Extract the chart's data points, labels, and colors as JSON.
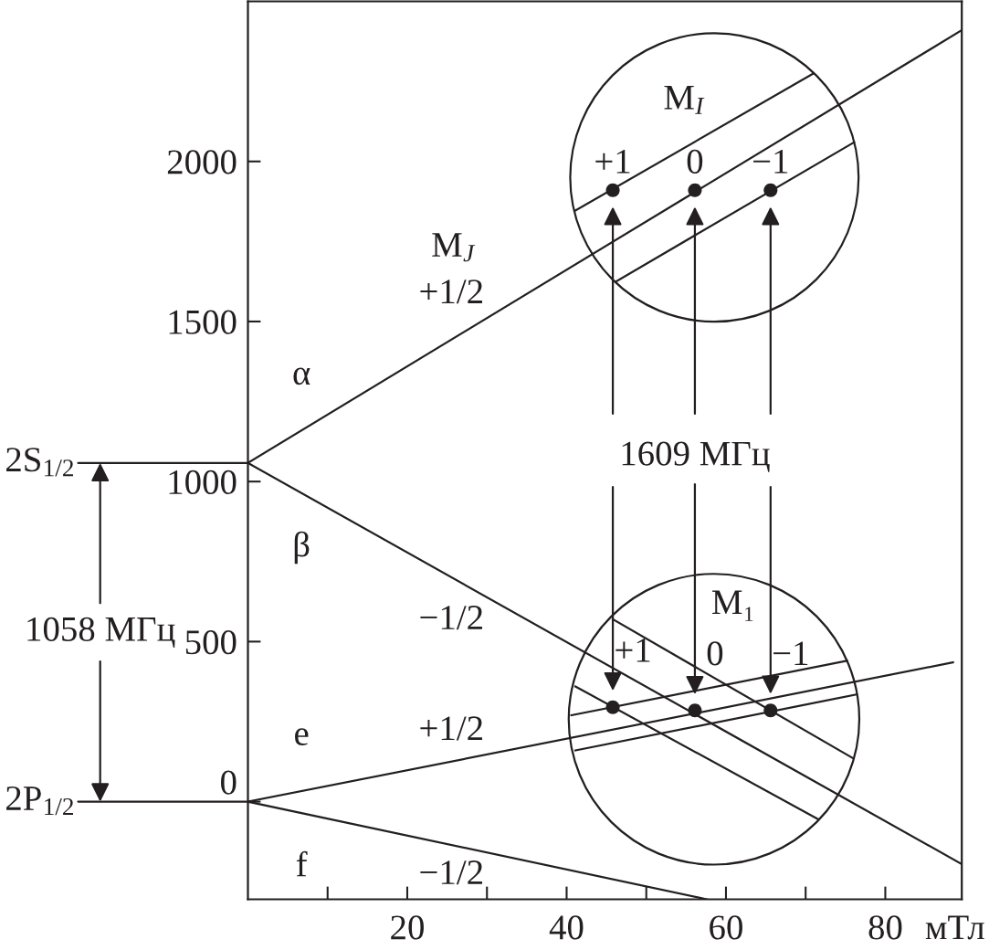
{
  "chart_data": {
    "type": "line",
    "xlabel": "мТл",
    "xlim": [
      0,
      89.6
    ],
    "xticks": [
      {
        "value": 10,
        "label": null
      },
      20,
      {
        "value": 30,
        "label": null
      },
      40,
      {
        "value": 50,
        "label": null
      },
      60,
      {
        "value": 70,
        "label": null
      },
      80
    ],
    "ylim": [
      -305,
      2500
    ],
    "yticks": [
      0,
      500,
      1000,
      1500,
      2000
    ],
    "line_style": "solid",
    "series": [
      {
        "name": "α",
        "color": "#231f20",
        "x": [
          0,
          89.6
        ],
        "values": [
          1058,
          2410
        ]
      },
      {
        "name": "β",
        "color": "#231f20",
        "x": [
          0,
          89.6
        ],
        "values": [
          1058,
          -195
        ]
      },
      {
        "name": "e",
        "color": "#231f20",
        "x": [
          0,
          88.5
        ],
        "values": [
          0,
          435
        ]
      },
      {
        "name": "f",
        "color": "#231f20",
        "x": [
          0,
          57.6
        ],
        "values": [
          0,
          -305
        ]
      },
      {
        "color": "#231f20",
        "x": [
          41.0,
          71.0
        ],
        "values": [
          1845,
          2275
        ]
      },
      {
        "color": "#231f20",
        "x": [
          46.2,
          76.1
        ],
        "values": [
          1625,
          2060
        ]
      },
      {
        "color": "#231f20",
        "x": [
          40.6,
          75.2
        ],
        "values": [
          270,
          440
        ]
      },
      {
        "color": "#231f20",
        "x": [
          41.1,
          76.4
        ],
        "values": [
          160,
          335
        ]
      },
      {
        "color": "#231f20",
        "x": [
          45.8,
          76.0
        ],
        "values": [
          570,
          135
        ]
      },
      {
        "color": "#231f20",
        "x": [
          41.1,
          71.6
        ],
        "values": [
          360,
          -55
        ]
      },
      {
        "type": "scatter",
        "marker": "circle",
        "color": "#231f20",
        "x": [
          45.8,
          56.1,
          65.6
        ],
        "values": [
          1910,
          1910,
          1910
        ]
      },
      {
        "type": "scatter",
        "marker": "circle",
        "color": "#231f20",
        "x": [
          45.8,
          56.1,
          65.6
        ],
        "values": [
          295,
          285,
          285
        ]
      }
    ],
    "annotations": [
      "2S$_{1/2}$",
      "2P$_{1/2}$",
      "1058 МГц",
      "M$_{J}$",
      "+1/2",
      "−1/2",
      "+1/2",
      "−1/2",
      {
        "text": "1609 МГц",
        "x": 56.1,
        "y": 335
      },
      "M$_{I}$",
      "+1",
      "0",
      "−1",
      "M₁",
      "+1",
      "0",
      "−1"
    ]
  }
}
